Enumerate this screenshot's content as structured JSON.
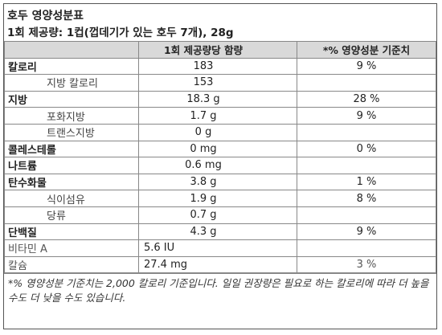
{
  "header": {
    "title": "호두 영양성분표",
    "serving": "1회 제공량: 1컵(껍데기가 있는 호두 7개), 28g"
  },
  "table": {
    "columns": [
      "1회 제공량당 함량",
      "*% 영양성분 기준치"
    ],
    "nutrients": [
      {
        "name": "칼로리",
        "amount": "183",
        "dv": "9 %",
        "sub": [
          {
            "name": "지방 칼로리",
            "amount": "153"
          }
        ]
      },
      {
        "name": "지방",
        "amount": "18.3 g",
        "dv": "28 %",
        "sub": [
          {
            "name": "포화지방",
            "amount": "1.7 g",
            "dv": "9 %"
          },
          {
            "name": "트랜스지방",
            "amount": "0 g"
          }
        ]
      },
      {
        "name": "콜레스테롤",
        "amount": "0 mg",
        "dv": "0 %"
      },
      {
        "name": "나트륨",
        "amount": "0.6 mg"
      },
      {
        "name": "탄수화물",
        "amount": "3.8 g",
        "dv": "1 %",
        "sub": [
          {
            "name": "식이섬유",
            "amount": "1.9 g",
            "dv": "8 %"
          },
          {
            "name": "당류",
            "amount": "0.7 g"
          }
        ]
      },
      {
        "name": "단백질",
        "amount": "4.3 g",
        "dv": "9 %"
      }
    ],
    "minerals": [
      {
        "name": "비타민 A",
        "amount": "5.6 IU"
      },
      {
        "name": "칼슘",
        "amount": "27.4 mg",
        "dv": "3 %"
      }
    ]
  },
  "footnote": "*% 영양성분 기준치는 2,000 칼로리 기준입니다. 일일 권장량은 필요로 하는 칼로리에 따라 더 높을 수도 더 낮을 수도 있습니다."
}
